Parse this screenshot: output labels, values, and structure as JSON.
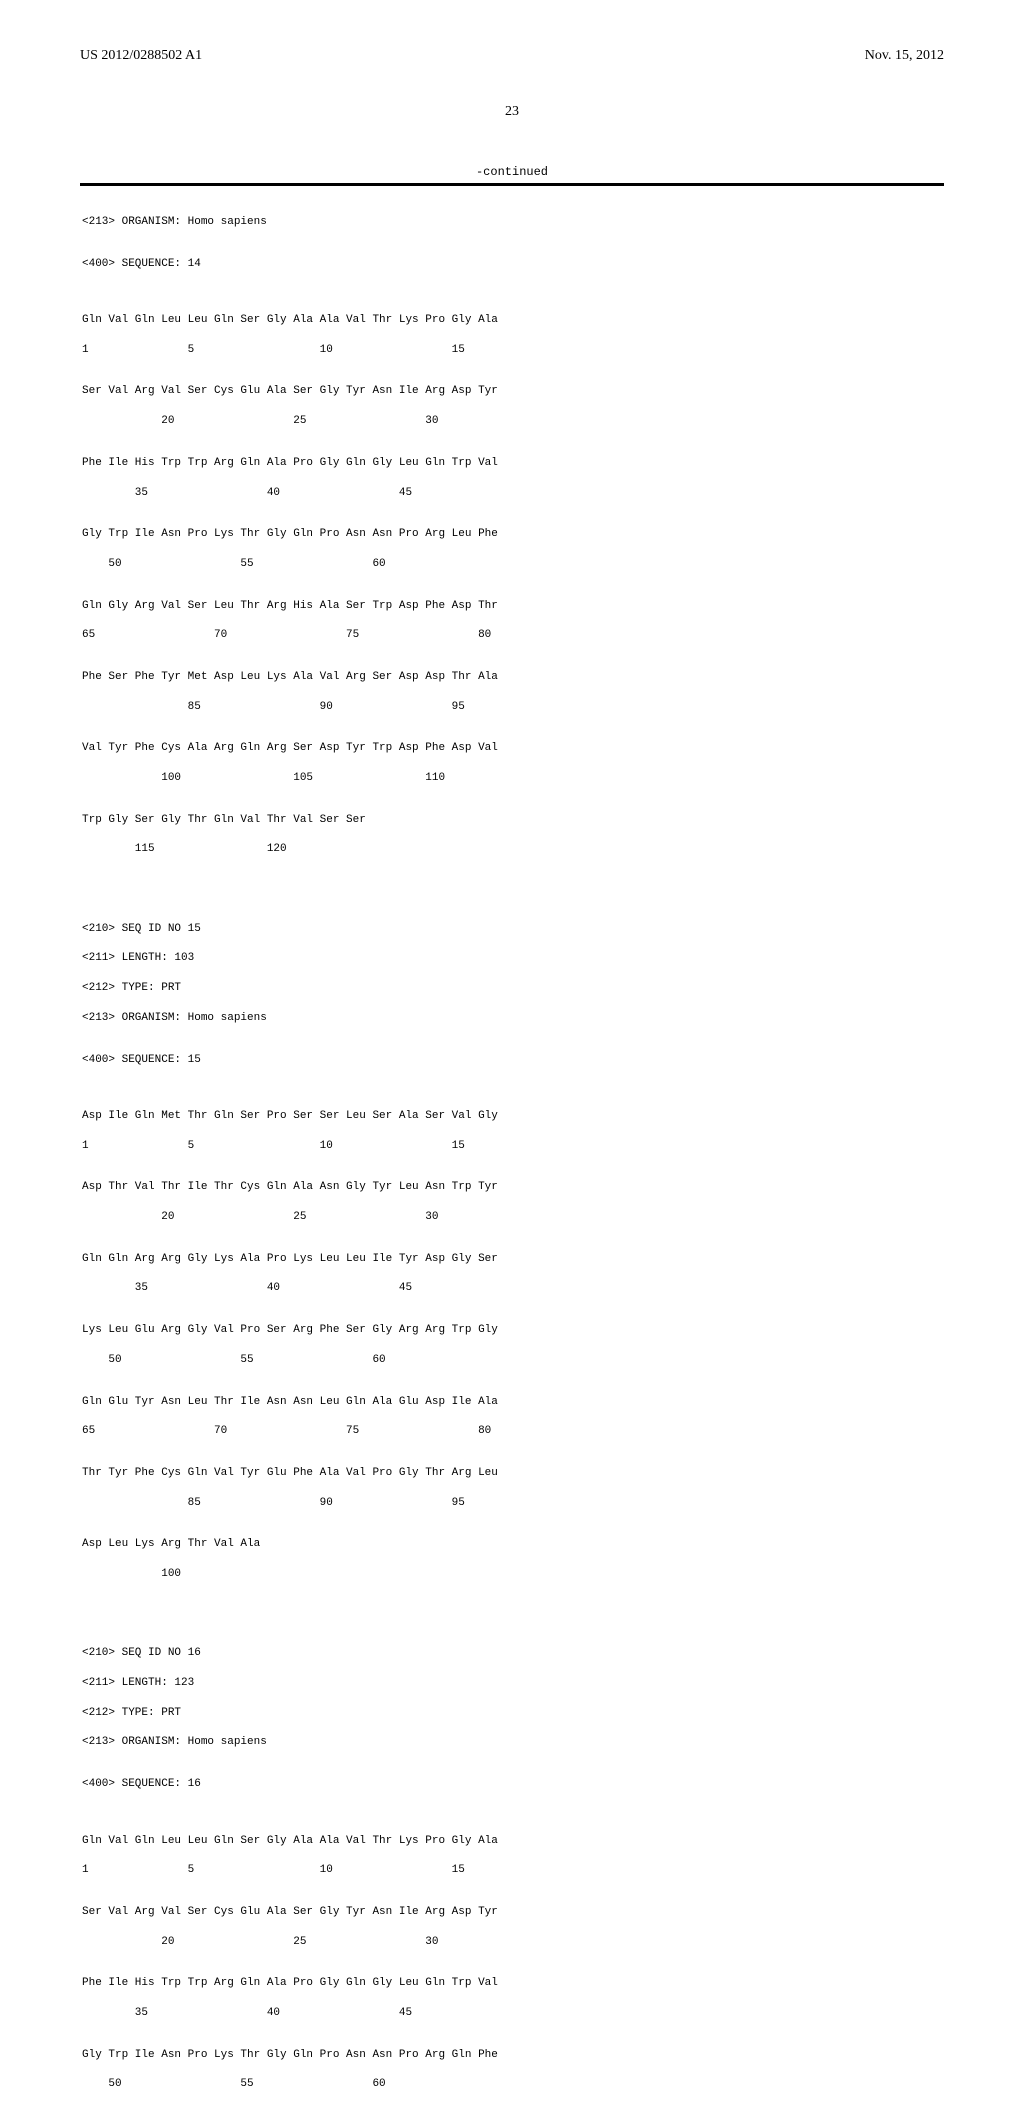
{
  "header": {
    "pub_number": "US 2012/0288502 A1",
    "pub_date": "Nov. 15, 2012",
    "page_number": "23"
  },
  "continued_label": "-continued",
  "seq14": {
    "organism": "<213> ORGANISM: Homo sapiens",
    "sequence_tag": "<400> SEQUENCE: 14",
    "rows": [
      {
        "aa": "Gln Val Gln Leu Leu Gln Ser Gly Ala Ala Val Thr Lys Pro Gly Ala",
        "pos": "1               5                   10                  15"
      },
      {
        "aa": "Ser Val Arg Val Ser Cys Glu Ala Ser Gly Tyr Asn Ile Arg Asp Tyr",
        "pos": "            20                  25                  30"
      },
      {
        "aa": "Phe Ile His Trp Trp Arg Gln Ala Pro Gly Gln Gly Leu Gln Trp Val",
        "pos": "        35                  40                  45"
      },
      {
        "aa": "Gly Trp Ile Asn Pro Lys Thr Gly Gln Pro Asn Asn Pro Arg Leu Phe",
        "pos": "    50                  55                  60"
      },
      {
        "aa": "Gln Gly Arg Val Ser Leu Thr Arg His Ala Ser Trp Asp Phe Asp Thr",
        "pos": "65                  70                  75                  80"
      },
      {
        "aa": "Phe Ser Phe Tyr Met Asp Leu Lys Ala Val Arg Ser Asp Asp Thr Ala",
        "pos": "                85                  90                  95"
      },
      {
        "aa": "Val Tyr Phe Cys Ala Arg Gln Arg Ser Asp Tyr Trp Asp Phe Asp Val",
        "pos": "            100                 105                 110"
      },
      {
        "aa": "Trp Gly Ser Gly Thr Gln Val Thr Val Ser Ser",
        "pos": "        115                 120"
      }
    ]
  },
  "seq15": {
    "seq_id": "<210> SEQ ID NO 15",
    "length": "<211> LENGTH: 103",
    "type": "<212> TYPE: PRT",
    "organism": "<213> ORGANISM: Homo sapiens",
    "sequence_tag": "<400> SEQUENCE: 15",
    "rows": [
      {
        "aa": "Asp Ile Gln Met Thr Gln Ser Pro Ser Ser Leu Ser Ala Ser Val Gly",
        "pos": "1               5                   10                  15"
      },
      {
        "aa": "Asp Thr Val Thr Ile Thr Cys Gln Ala Asn Gly Tyr Leu Asn Trp Tyr",
        "pos": "            20                  25                  30"
      },
      {
        "aa": "Gln Gln Arg Arg Gly Lys Ala Pro Lys Leu Leu Ile Tyr Asp Gly Ser",
        "pos": "        35                  40                  45"
      },
      {
        "aa": "Lys Leu Glu Arg Gly Val Pro Ser Arg Phe Ser Gly Arg Arg Trp Gly",
        "pos": "    50                  55                  60"
      },
      {
        "aa": "Gln Glu Tyr Asn Leu Thr Ile Asn Asn Leu Gln Ala Glu Asp Ile Ala",
        "pos": "65                  70                  75                  80"
      },
      {
        "aa": "Thr Tyr Phe Cys Gln Val Tyr Glu Phe Ala Val Pro Gly Thr Arg Leu",
        "pos": "                85                  90                  95"
      },
      {
        "aa": "Asp Leu Lys Arg Thr Val Ala",
        "pos": "            100"
      }
    ]
  },
  "seq16": {
    "seq_id": "<210> SEQ ID NO 16",
    "length": "<211> LENGTH: 123",
    "type": "<212> TYPE: PRT",
    "organism": "<213> ORGANISM: Homo sapiens",
    "sequence_tag": "<400> SEQUENCE: 16",
    "rows": [
      {
        "aa": "Gln Val Gln Leu Leu Gln Ser Gly Ala Ala Val Thr Lys Pro Gly Ala",
        "pos": "1               5                   10                  15"
      },
      {
        "aa": "Ser Val Arg Val Ser Cys Glu Ala Ser Gly Tyr Asn Ile Arg Asp Tyr",
        "pos": "            20                  25                  30"
      },
      {
        "aa": "Phe Ile His Trp Trp Arg Gln Ala Pro Gly Gln Gly Leu Gln Trp Val",
        "pos": "        35                  40                  45"
      },
      {
        "aa": "Gly Trp Ile Asn Pro Lys Thr Gly Gln Pro Asn Asn Pro Arg Gln Phe",
        "pos": "    50                  55                  60"
      }
    ]
  },
  "colors": {
    "text": "#000000",
    "background": "#ffffff",
    "rule_thick": "#000000",
    "rule_thin": "#000000"
  },
  "fonts": {
    "body": "Times New Roman",
    "mono": "Courier New",
    "body_size_pt": 11,
    "mono_size_pt": 8.5
  }
}
